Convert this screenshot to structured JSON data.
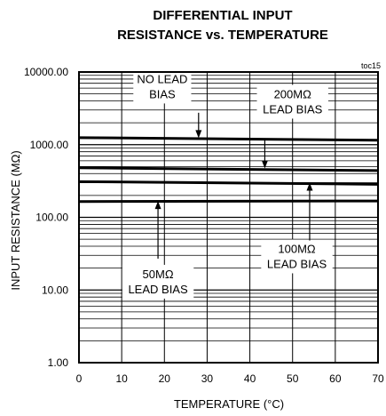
{
  "chart_data": {
    "type": "line",
    "title_line1": "DIFFERENTIAL INPUT",
    "title_line2": "RESISTANCE vs. TEMPERATURE",
    "figure_tag": "toc15",
    "xlabel": "TEMPERATURE (°C)",
    "ylabel": "INPUT RESISTANCE (MΩ)",
    "x_scale": "linear",
    "y_scale": "log",
    "xlim": [
      0,
      70
    ],
    "ylim": [
      1,
      10000
    ],
    "x_ticks": [
      0,
      10,
      20,
      30,
      40,
      50,
      60,
      70
    ],
    "x_tick_labels": [
      "0",
      "10",
      "20",
      "30",
      "40",
      "50",
      "60",
      "70"
    ],
    "y_ticks": [
      1,
      10,
      100,
      1000,
      10000
    ],
    "y_tick_labels": [
      "1.00",
      "10.00",
      "100.00",
      "1000.00",
      "10000.00"
    ],
    "grid": true,
    "series": [
      {
        "name": "NO LEAD BIAS",
        "x": [
          0,
          70
        ],
        "y": [
          1250,
          1150
        ]
      },
      {
        "name": "200MΩ LEAD BIAS",
        "x": [
          0,
          70
        ],
        "y": [
          480,
          440
        ]
      },
      {
        "name": "100MΩ LEAD BIAS",
        "x": [
          0,
          70
        ],
        "y": [
          310,
          285
        ]
      },
      {
        "name": "50MΩ LEAD BIAS",
        "x": [
          0,
          70
        ],
        "y": [
          165,
          168
        ]
      }
    ],
    "annotations": [
      {
        "lines": [
          "NO LEAD",
          "BIAS"
        ],
        "arrow_x": 28,
        "arrow_tip_y": 1230,
        "text_x": 19.5,
        "text_y": 6300,
        "arrow_from_y": 2750
      },
      {
        "lines": [
          "200MΩ",
          "LEAD BIAS"
        ],
        "arrow_x": 43.5,
        "arrow_tip_y": 470,
        "text_x": 50,
        "text_y": 3900,
        "arrow_from_y": 1150
      },
      {
        "lines": [
          "100MΩ",
          "LEAD BIAS"
        ],
        "arrow_x": 54,
        "arrow_tip_y": 300,
        "text_x": 51,
        "text_y": 29,
        "arrow_from_y": 48
      },
      {
        "lines": [
          "50MΩ",
          "LEAD BIAS"
        ],
        "arrow_x": 18.5,
        "arrow_tip_y": 168,
        "text_x": 18.5,
        "text_y": 13,
        "arrow_from_y": 27
      }
    ]
  }
}
